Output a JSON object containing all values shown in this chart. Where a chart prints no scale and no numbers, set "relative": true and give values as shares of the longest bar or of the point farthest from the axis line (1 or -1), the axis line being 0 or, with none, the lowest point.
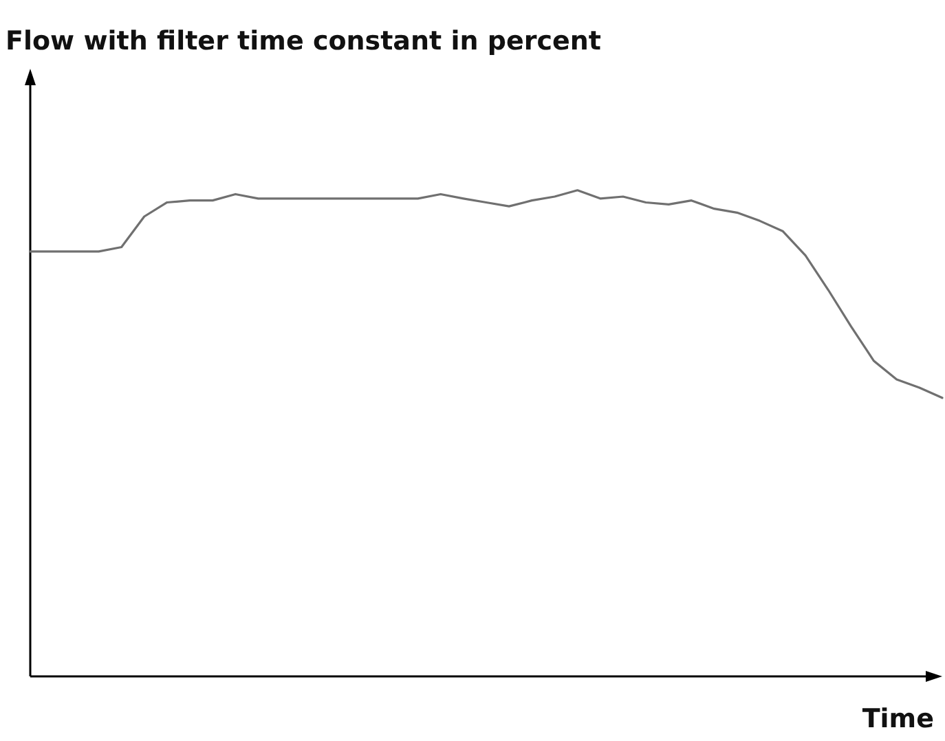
{
  "chart_data": {
    "type": "line",
    "xlabel": "Time",
    "annotations": [
      "Flow with filter time constant in percent"
    ],
    "relative": true,
    "line_style": "solid",
    "categories": [
      null,
      null,
      null,
      null,
      null,
      null,
      null,
      null,
      null,
      null,
      null,
      null,
      null,
      null,
      null,
      null,
      null,
      null,
      null,
      null,
      null,
      null,
      null,
      null,
      null,
      null,
      null,
      null,
      null,
      null,
      null,
      null,
      null,
      null,
      null,
      null,
      null,
      null,
      null,
      null,
      null
    ],
    "series": [
      {
        "color": "#707070",
        "values": [
          0.874,
          0.874,
          0.874,
          0.874,
          0.883,
          0.946,
          0.975,
          0.979,
          0.979,
          0.992,
          0.983,
          0.983,
          0.983,
          0.983,
          0.983,
          0.983,
          0.983,
          0.983,
          0.992,
          0.983,
          0.975,
          0.967,
          0.979,
          0.987,
          1,
          0.983,
          0.987,
          0.975,
          0.971,
          0.979,
          0.962,
          0.954,
          0.937,
          0.916,
          0.866,
          0.795,
          0.72,
          0.649,
          0.611,
          0.594,
          0.573
        ]
      }
    ]
  }
}
